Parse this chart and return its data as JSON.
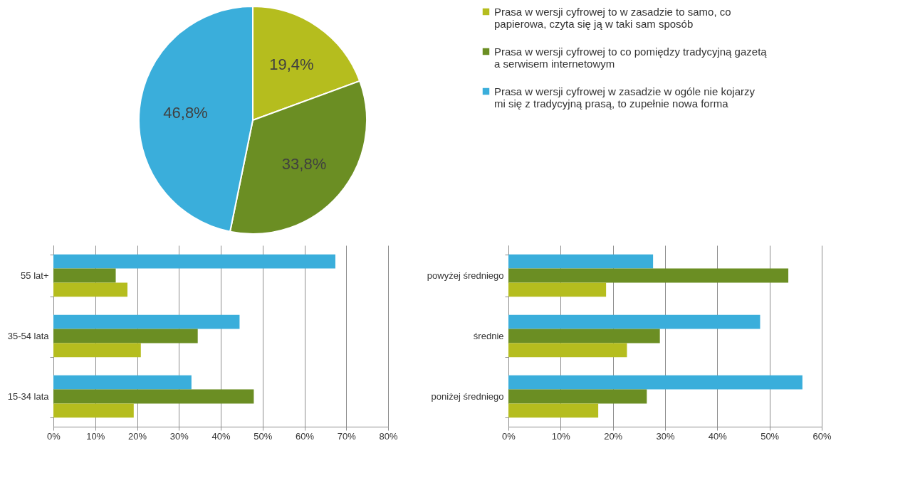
{
  "chart_data": [
    {
      "type": "pie",
      "categories": [
        "Prasa w wersji cyfrowej to w zasadzie to samo, co papierowa, czyta się ją w taki sam sposób",
        "Prasa w wersji cyfrowej to co pomiędzy tradycyjną gazetą a serwisem internetowym",
        "Prasa w wersji cyfrowej w zasadzie w ogóle nie kojarzy mi się z tradycyjną prasą, to zupełnie nowa forma"
      ],
      "values": [
        19.4,
        33.8,
        46.8
      ],
      "value_labels": [
        "19,4%",
        "33,8%",
        "46,8%"
      ],
      "colors": [
        "#b5bd1e",
        "#6b8e23",
        "#3aaedb"
      ],
      "legend": "right"
    },
    {
      "type": "bar",
      "orientation": "horizontal",
      "categories": [
        "55 lat+",
        "35-54 lata",
        "15-34 lata"
      ],
      "series": [
        {
          "color": "#3aaedb",
          "values": [
            67.4,
            44.5,
            33.0
          ]
        },
        {
          "color": "#6b8e23",
          "values": [
            14.9,
            34.5,
            47.9
          ]
        },
        {
          "color": "#b5bd1e",
          "values": [
            17.7,
            20.9,
            19.2
          ]
        }
      ],
      "xlim": [
        0,
        80
      ],
      "xticks": [
        {
          "value": 0,
          "label": "0%"
        },
        {
          "value": 10,
          "label": "10%"
        },
        {
          "value": 20,
          "label": "20%"
        },
        {
          "value": 30,
          "label": "30%"
        },
        {
          "value": 40,
          "label": "40%"
        },
        {
          "value": 50,
          "label": "50%"
        },
        {
          "value": 60,
          "label": "60%"
        },
        {
          "value": 70,
          "label": "70%"
        },
        {
          "value": 80,
          "label": "80%"
        }
      ],
      "grid": "x"
    },
    {
      "type": "bar",
      "orientation": "horizontal",
      "categories": [
        "powyżej średniego",
        "średnie",
        "poniżej średniego"
      ],
      "series": [
        {
          "color": "#3aaedb",
          "values": [
            27.7,
            48.2,
            56.3
          ]
        },
        {
          "color": "#6b8e23",
          "values": [
            53.6,
            29.0,
            26.5
          ]
        },
        {
          "color": "#b5bd1e",
          "values": [
            18.7,
            22.7,
            17.2
          ]
        }
      ],
      "xlim": [
        0,
        60
      ],
      "xticks": [
        {
          "value": 0,
          "label": "0%"
        },
        {
          "value": 10,
          "label": "10%"
        },
        {
          "value": 20,
          "label": "20%"
        },
        {
          "value": 30,
          "label": "30%"
        },
        {
          "value": 40,
          "label": "40%"
        },
        {
          "value": 50,
          "label": "50%"
        },
        {
          "value": 60,
          "label": "60%"
        }
      ],
      "grid": "x"
    }
  ]
}
